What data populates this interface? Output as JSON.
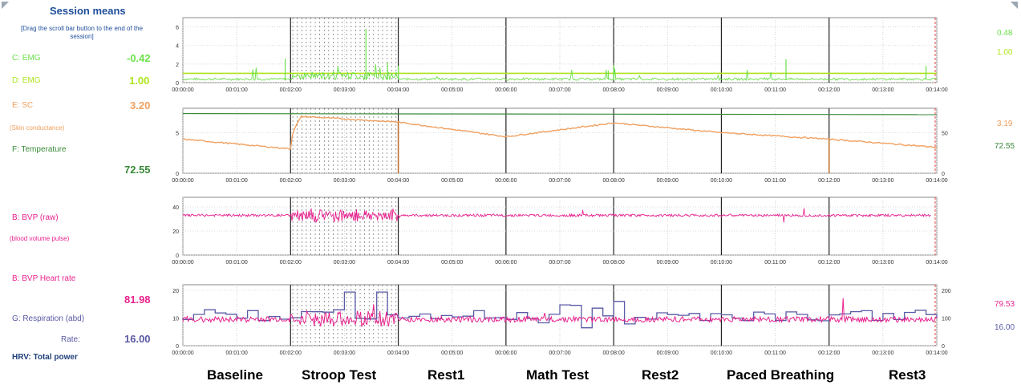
{
  "colors": {
    "emg_c": "#6ce04a",
    "emg_d": "#aee41a",
    "sc": "#f0a060",
    "temp": "#3a8a3a",
    "bvp": "#e8228e",
    "resp": "#5a5aa6",
    "title": "#1f4e9a",
    "hrv": "#1f3f7a"
  },
  "left_panel": {
    "title": "Session means",
    "instruction": "[Drag the scroll bar button to the end of the session]",
    "emg_c_label": "C: EMG",
    "emg_c_value": "-0.42",
    "emg_d_label": "D: EMG",
    "emg_d_value": "1.00",
    "sc_label": "E: SC",
    "sc_value": "3.20",
    "sc_sublabel": "(Skin conductance)",
    "temp_label": "F: Temperature",
    "temp_value": "72.55",
    "bvp_label": "B: BVP (raw)",
    "bvp_sublabel": "(blood volume pulse)",
    "hr_label": "B: BVP Heart rate",
    "hr_value": "81.98",
    "resp_label": "G: Respiration (abd)",
    "rate_label": "Rate:",
    "rate_value": "16.00",
    "hrv_label": "HRV: Total power"
  },
  "right_values": {
    "emg_c": "0.48",
    "emg_d": "1.00",
    "sc": "3.19",
    "temp": "72.55",
    "hr": "79.53",
    "rate": "16.00"
  },
  "time_ticks": [
    "00:00:00",
    "00:01:00",
    "00:02:00",
    "00:03:00",
    "00:04:00",
    "00:05:00",
    "00:06:00",
    "00:07:00",
    "00:08:00",
    "00:09:00",
    "00:10:00",
    "00:11:00",
    "00:12:00",
    "00:13:00",
    "00:14:00"
  ],
  "segments": [
    "Baseline",
    "Stroop Test",
    "Rest1",
    "Math Test",
    "Rest2",
    "Paced Breathing",
    "Rest3"
  ],
  "chart_data": [
    {
      "type": "line",
      "xlabel": "",
      "ylabel": "",
      "y_ticks": [
        "0",
        "2",
        "4",
        "6"
      ],
      "ylim": [
        0,
        7
      ],
      "series": [
        {
          "name": "C: EMG",
          "approx_level": 0.3,
          "spikes": true
        },
        {
          "name": "D: EMG",
          "approx_level": 1.0
        }
      ]
    },
    {
      "type": "line",
      "y_ticks_left": [
        "0",
        "5"
      ],
      "y_ticks_right": [
        "0",
        "50"
      ],
      "series": [
        {
          "name": "E: SC",
          "x_min": [
            0,
            2,
            2.2,
            4,
            6,
            8,
            10,
            12,
            14
          ],
          "y": [
            4.2,
            3.0,
            7.0,
            6.3,
            4.5,
            6.2,
            5.0,
            4.2,
            3.2
          ]
        },
        {
          "name": "F: Temperature",
          "x_min": [
            0,
            14
          ],
          "y": [
            72.8,
            72.55
          ]
        }
      ]
    },
    {
      "type": "line",
      "y_ticks": [
        "0",
        "20",
        "40"
      ],
      "series": [
        {
          "name": "B: BVP (raw)",
          "approx_level": 32
        }
      ]
    },
    {
      "type": "line",
      "y_ticks_left": [
        "0",
        "10",
        "20"
      ],
      "y_ticks_right": [
        "0",
        "100",
        "200"
      ],
      "series": [
        {
          "name": "B: BVP Heart rate",
          "approx_level": 82
        },
        {
          "name": "G: Respiration (abd)",
          "approx_level": 16
        }
      ]
    }
  ]
}
